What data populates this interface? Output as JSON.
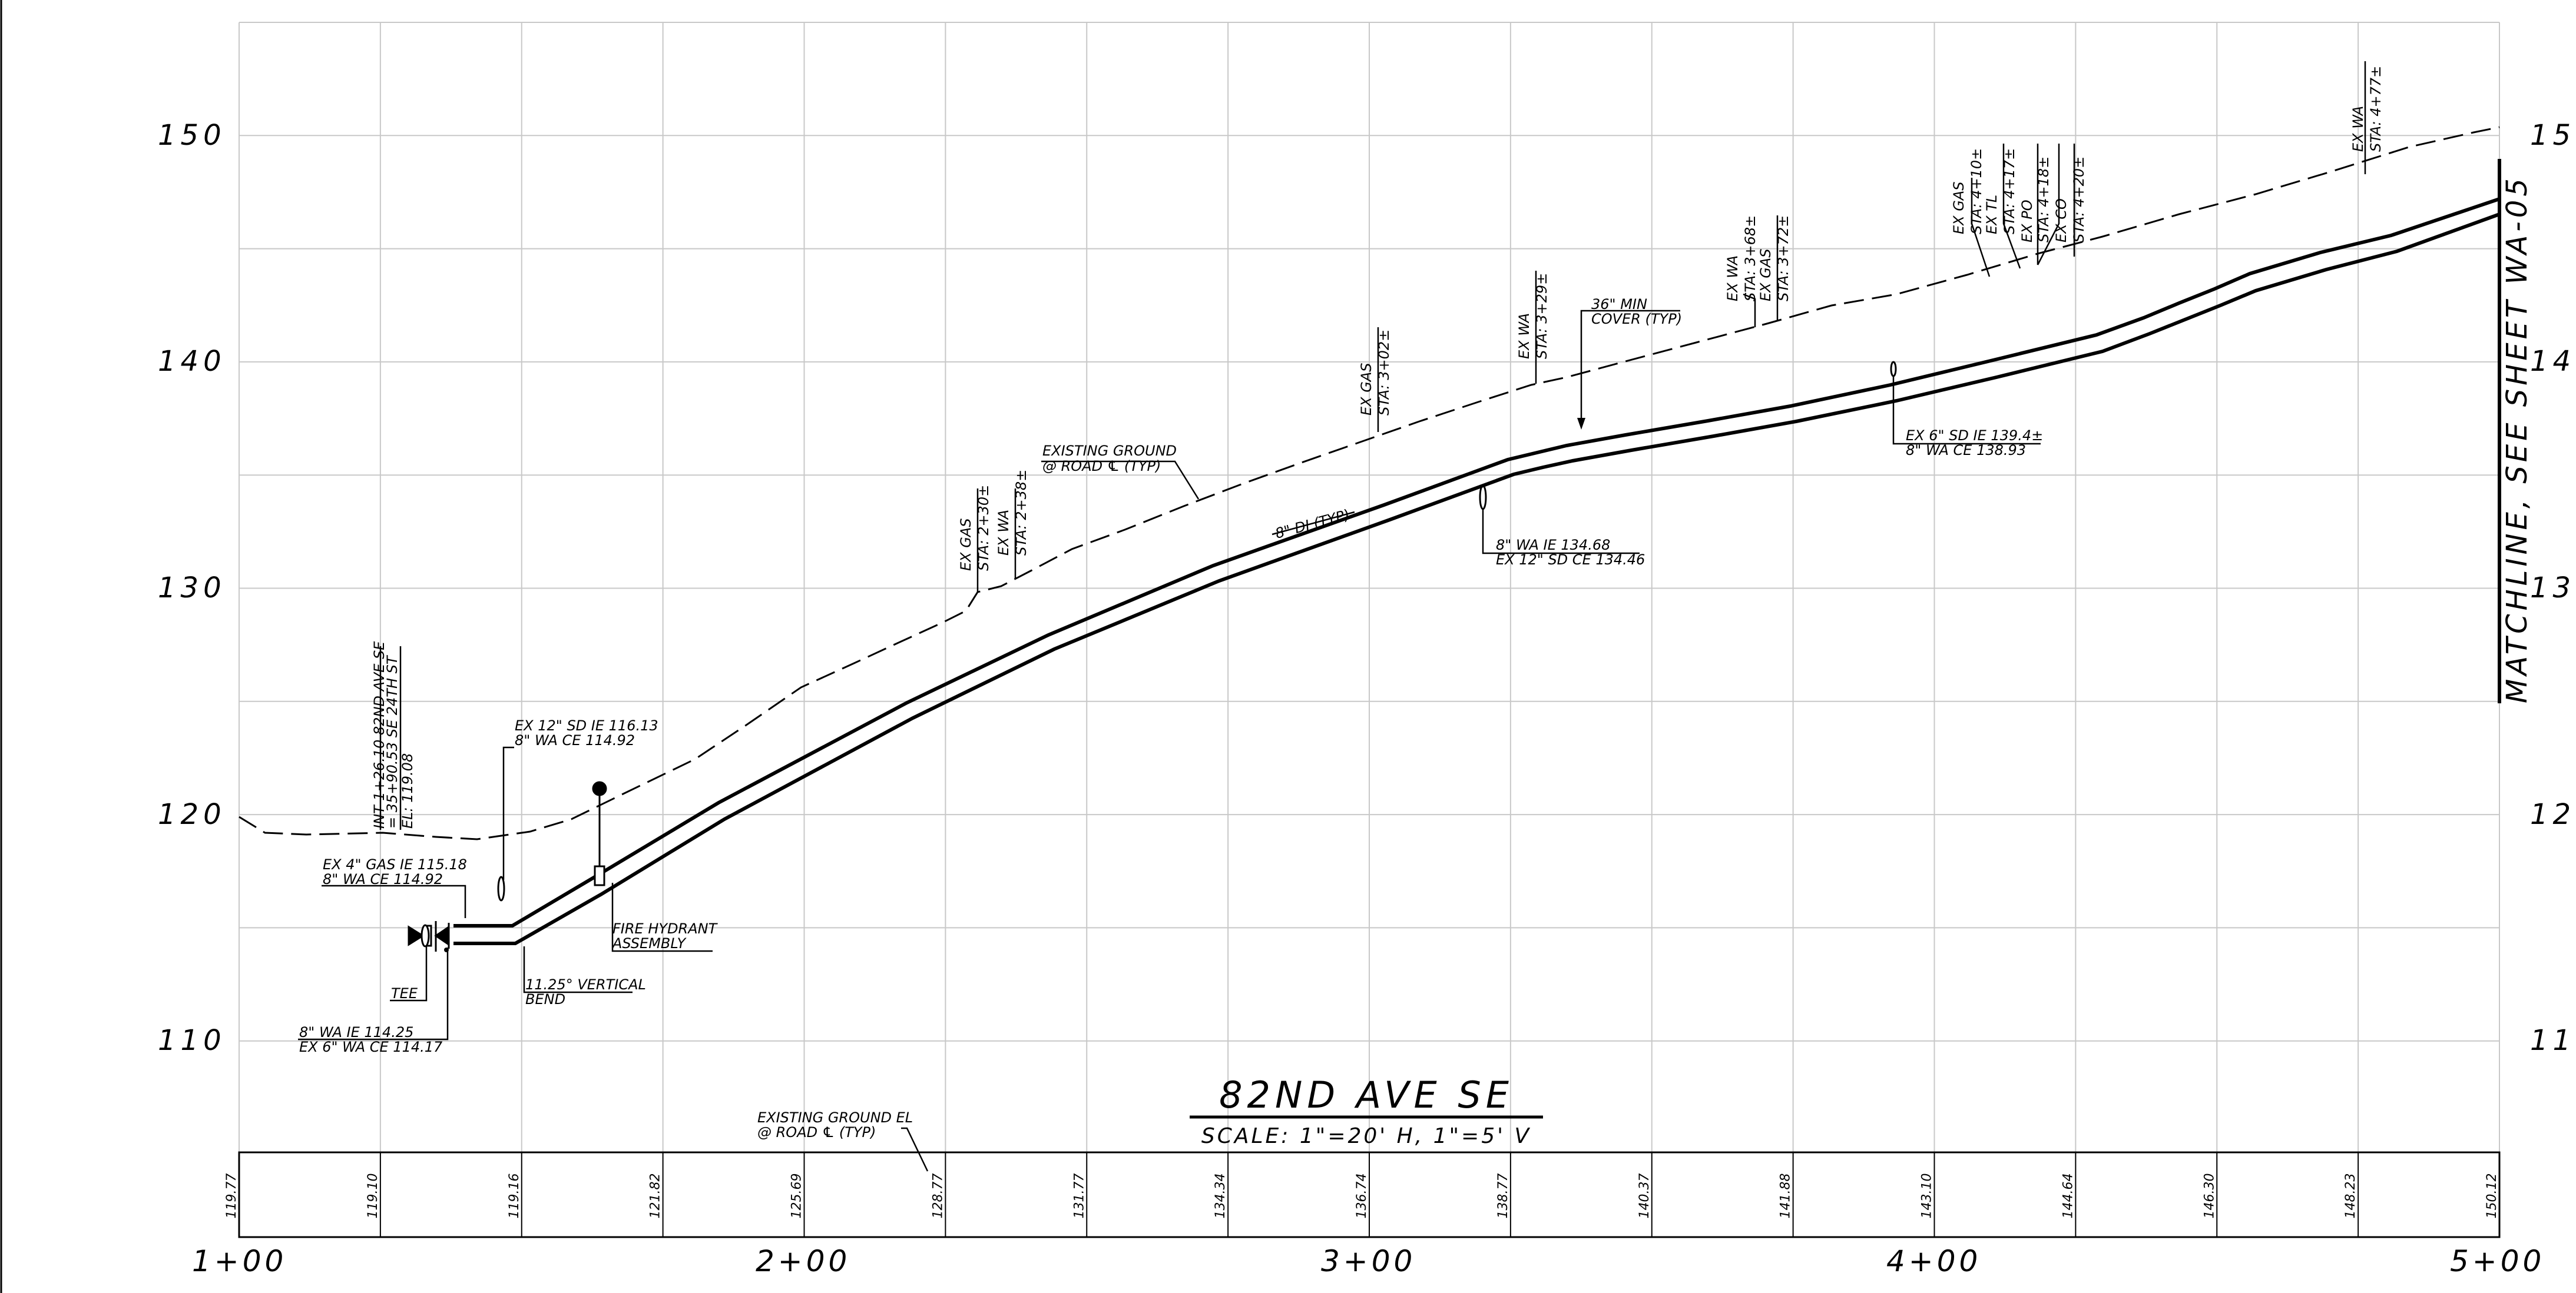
{
  "drawing": {
    "title": "82ND AVE SE",
    "scale": "SCALE: 1\"=20' H, 1\"=5' V",
    "matchline": "MATCHLINE, SEE SHEET WA-05",
    "elevation_labels_left": [
      "150",
      "140",
      "130",
      "120",
      "110"
    ],
    "elevation_labels_right": [
      "15",
      "14",
      "13",
      "12",
      "11"
    ],
    "station_labels": [
      "1+00",
      "2+00",
      "3+00",
      "4+00",
      "5+00"
    ],
    "ground_elevations": [
      "119.77",
      "119.10",
      "119.16",
      "121.82",
      "125.69",
      "128.77",
      "131.77",
      "134.34",
      "136.74",
      "138.77",
      "140.37",
      "141.88",
      "143.10",
      "144.64",
      "146.30",
      "148.23",
      "150.12"
    ]
  },
  "callouts": {
    "int_station": {
      "l1": "INT 1+26.10 82ND AVE SE",
      "l2": "= 35+90.53 SE 24TH ST",
      "l3": "EL: 119.08"
    },
    "ex_gas_4": {
      "l1": "EX 4\" GAS IE 115.18",
      "l2": "8\" WA CE 114.92"
    },
    "ex_sd_12a": {
      "l1": "EX 12\" SD IE 116.13",
      "l2": "8\" WA CE 114.92"
    },
    "tee": "TEE",
    "vertical_bend": {
      "l1": "11.25° VERTICAL",
      "l2": "BEND"
    },
    "fire_hydrant": {
      "l1": "FIRE HYDRANT",
      "l2": "ASSEMBLY"
    },
    "wa_ie_start": {
      "l1": "8\" WA IE 114.25",
      "l2": "EX 6\" WA CE 114.17"
    },
    "existing_ground": {
      "l1": "EXISTING GROUND",
      "l2": "@ ROAD ℄ (TYP)"
    },
    "existing_ground_el": {
      "l1": "EXISTING GROUND EL",
      "l2": "@ ROAD ℄ (TYP)"
    },
    "ex_gas_230": {
      "l1": "EX GAS",
      "l2": "STA: 2+30±"
    },
    "ex_wa_238": {
      "l1": "EX WA",
      "l2": "STA: 2+38±"
    },
    "di_pipe": "8\" DI (TYP)",
    "ex_gas_302": {
      "l1": "EX GAS",
      "l2": "STA: 3+02±"
    },
    "wa_ie_134": {
      "l1": "8\" WA IE 134.68",
      "l2": "EX 12\" SD CE 134.46"
    },
    "ex_wa_329": {
      "l1": "EX WA",
      "l2": "STA: 3+29±"
    },
    "min_cover": {
      "l1": "36\" MIN",
      "l2": "COVER (TYP)"
    },
    "ex_wa_368": {
      "l1": "EX WA",
      "l2": "STA: 3+68±"
    },
    "ex_gas_372": {
      "l1": "EX GAS",
      "l2": "STA: 3+72±"
    },
    "ex_sd_6": {
      "l1": "EX 6\" SD IE 139.4±",
      "l2": "8\" WA CE 138.93"
    },
    "ex_gas_410": {
      "l1": "EX GAS",
      "l2": "STA: 4+10±"
    },
    "ex_tl_417": {
      "l1": "EX TL",
      "l2": "STA: 4+17±"
    },
    "ex_po_418": {
      "l1": "EX PO",
      "l2": "STA: 4+18±"
    },
    "ex_co_420": {
      "l1": "EX CO",
      "l2": "STA: 4+20±"
    },
    "ex_wa_477": {
      "l1": "EX WA",
      "l2": "STA: 4+77±"
    }
  }
}
